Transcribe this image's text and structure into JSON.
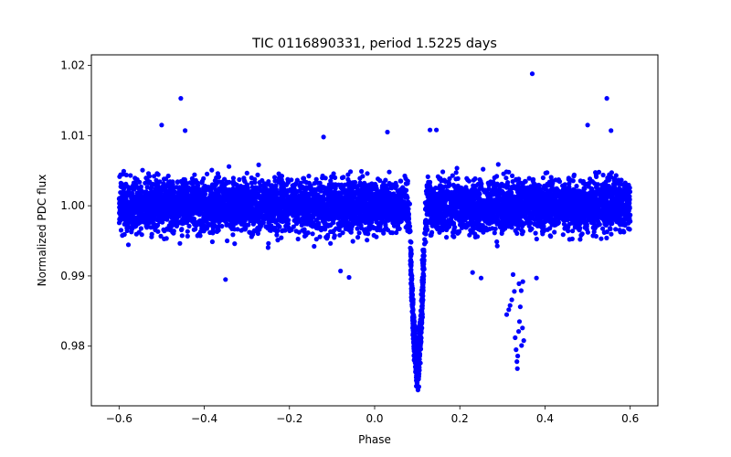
{
  "chart_data": {
    "type": "scatter",
    "title": "TIC 0116890331, period 1.5225 days",
    "xlabel": "Phase",
    "ylabel": "Normalized PDC flux",
    "xlim": [
      -0.665,
      0.665
    ],
    "ylim": [
      0.9715,
      1.0215
    ],
    "xticks": [
      {
        "value": -0.6,
        "label": "−0.6"
      },
      {
        "value": -0.4,
        "label": "−0.4"
      },
      {
        "value": -0.2,
        "label": "−0.2"
      },
      {
        "value": 0.0,
        "label": "0.0"
      },
      {
        "value": 0.2,
        "label": "0.2"
      },
      {
        "value": 0.4,
        "label": "0.4"
      },
      {
        "value": 0.6,
        "label": "0.6"
      }
    ],
    "yticks": [
      {
        "value": 0.98,
        "label": "0.98"
      },
      {
        "value": 0.99,
        "label": "0.99"
      },
      {
        "value": 1.0,
        "label": "1.00"
      },
      {
        "value": 1.01,
        "label": "1.01"
      },
      {
        "value": 1.02,
        "label": "1.02"
      }
    ],
    "grid": false,
    "series": [
      {
        "name": "PDC flux",
        "color": "#0000ff",
        "baseline": 1.0,
        "baseline_scatter": 0.0025,
        "x_range": [
          -0.6,
          0.6
        ],
        "primary_eclipse": {
          "center": 0.1,
          "depth": 0.0225,
          "half_width": 0.022
        },
        "secondary_eclipse_points": [
          {
            "x": 0.31,
            "y": 0.9845
          },
          {
            "x": 0.315,
            "y": 0.9852
          },
          {
            "x": 0.318,
            "y": 0.9858
          },
          {
            "x": 0.322,
            "y": 0.9866
          },
          {
            "x": 0.325,
            "y": 0.9902
          },
          {
            "x": 0.328,
            "y": 0.9878
          },
          {
            "x": 0.33,
            "y": 0.9812
          },
          {
            "x": 0.332,
            "y": 0.9795
          },
          {
            "x": 0.334,
            "y": 0.9778
          },
          {
            "x": 0.335,
            "y": 0.9768
          },
          {
            "x": 0.336,
            "y": 0.9786
          },
          {
            "x": 0.338,
            "y": 0.9821
          },
          {
            "x": 0.339,
            "y": 0.9889
          },
          {
            "x": 0.34,
            "y": 0.9835
          },
          {
            "x": 0.342,
            "y": 0.9856
          },
          {
            "x": 0.344,
            "y": 0.9879
          },
          {
            "x": 0.345,
            "y": 0.9801
          },
          {
            "x": 0.347,
            "y": 0.9826
          },
          {
            "x": 0.35,
            "y": 0.9808
          },
          {
            "x": 0.348,
            "y": 0.9892
          }
        ],
        "outliers": [
          {
            "x": 0.37,
            "y": 1.0188
          },
          {
            "x": -0.455,
            "y": 1.0153
          },
          {
            "x": 0.545,
            "y": 1.0153
          },
          {
            "x": -0.5,
            "y": 1.0115
          },
          {
            "x": 0.5,
            "y": 1.0115
          },
          {
            "x": -0.445,
            "y": 1.0107
          },
          {
            "x": 0.555,
            "y": 1.0107
          },
          {
            "x": 0.13,
            "y": 1.0108
          },
          {
            "x": 0.145,
            "y": 1.0108
          },
          {
            "x": -0.35,
            "y": 0.9895
          },
          {
            "x": 0.25,
            "y": 0.9897
          },
          {
            "x": -0.06,
            "y": 0.9898
          },
          {
            "x": 0.38,
            "y": 0.9897
          },
          {
            "x": 0.03,
            "y": 1.0105
          },
          {
            "x": -0.12,
            "y": 1.0098
          },
          {
            "x": 0.23,
            "y": 0.9905
          },
          {
            "x": -0.08,
            "y": 0.9907
          }
        ]
      }
    ]
  }
}
